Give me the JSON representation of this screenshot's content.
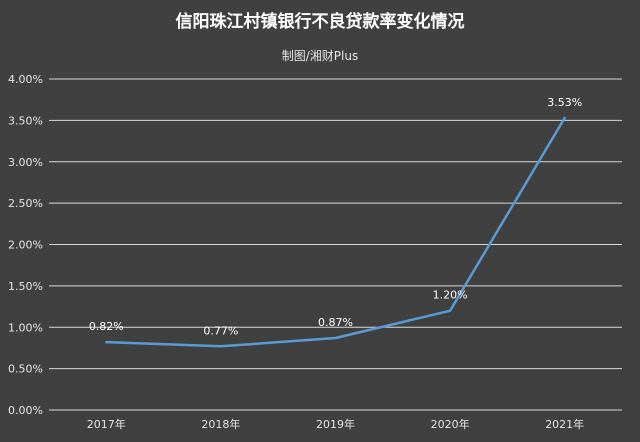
{
  "chart_data": {
    "type": "line",
    "title": "信阳珠江村镇银行不良贷款率变化情况",
    "subtitle": "制图/湘财Plus",
    "categories": [
      "2017年",
      "2018年",
      "2019年",
      "2020年",
      "2021年"
    ],
    "series": [
      {
        "name": "不良贷款率",
        "values": [
          0.82,
          0.77,
          0.87,
          1.2,
          3.53
        ],
        "labels": [
          "0.82%",
          "0.77%",
          "0.87%",
          "1.20%",
          "3.53%"
        ]
      }
    ],
    "yticks": [
      "0.00%",
      "0.50%",
      "1.00%",
      "1.50%",
      "2.00%",
      "2.50%",
      "3.00%",
      "3.50%",
      "4.00%"
    ],
    "ylim": [
      0,
      4
    ],
    "xlabel": "",
    "ylabel": "",
    "grid": true,
    "colors": {
      "background": "#404040",
      "line": "#5b9bd5",
      "grid": "#d9d9d9",
      "text": "#e6e6e6"
    }
  }
}
